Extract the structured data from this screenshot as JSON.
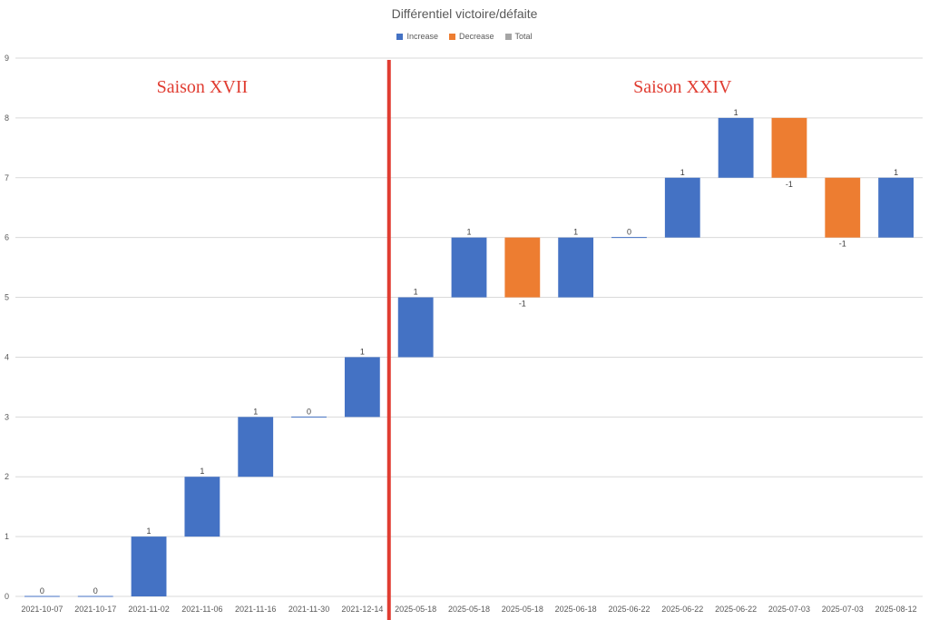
{
  "chart_data": {
    "type": "waterfall",
    "title": "Différentiel victoire/défaite",
    "legend": [
      {
        "label": "Increase",
        "color": "#4472c4"
      },
      {
        "label": "Decrease",
        "color": "#ed7d31"
      },
      {
        "label": "Total",
        "color": "#a5a5a5"
      }
    ],
    "legend_position": "top",
    "ylim": [
      0,
      9
    ],
    "yticks": [
      0,
      1,
      2,
      3,
      4,
      5,
      6,
      7,
      8,
      9
    ],
    "grid": true,
    "categories": [
      "2021-10-07",
      "2021-10-17",
      "2021-11-02",
      "2021-11-06",
      "2021-11-16",
      "2021-11-30",
      "2021-12-14",
      "2025-05-18",
      "2025-05-18",
      "2025-05-18",
      "2025-06-18",
      "2025-06-22",
      "2025-06-22",
      "2025-06-22",
      "2025-07-03",
      "2025-07-03",
      "2025-08-12"
    ],
    "values": [
      0,
      0,
      1,
      1,
      1,
      0,
      1,
      1,
      1,
      -1,
      1,
      0,
      1,
      1,
      -1,
      -1,
      1
    ],
    "data_labels": [
      "0",
      "0",
      "1",
      "1",
      "1",
      "0",
      "1",
      "1",
      "1",
      "-1",
      "1",
      "0",
      "1",
      "1",
      "-1",
      "-1",
      "1"
    ],
    "colors": {
      "increase": "#4472c4",
      "decrease": "#ed7d31",
      "total": "#a5a5a5"
    },
    "divider": {
      "after_index": 6,
      "color": "#e03c31"
    },
    "annotations": [
      {
        "text": "Saison XVII",
        "category_index": 3
      },
      {
        "text": "Saison XXIV",
        "category_index": 12
      }
    ]
  }
}
